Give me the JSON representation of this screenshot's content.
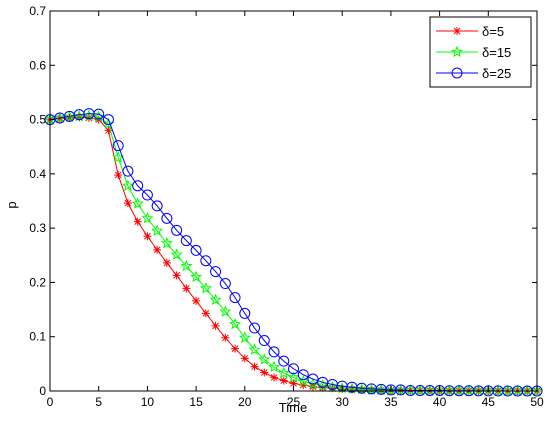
{
  "chart_data": {
    "type": "line",
    "xlabel": "Time",
    "ylabel": "p",
    "xlim": [
      0,
      50
    ],
    "ylim": [
      0,
      0.7
    ],
    "xticks": [
      0,
      5,
      10,
      15,
      20,
      25,
      30,
      35,
      40,
      45,
      50
    ],
    "yticks": [
      0,
      0.1,
      0.2,
      0.3,
      0.4,
      0.5,
      0.6,
      0.7
    ],
    "xtick_labels": [
      "0",
      "5",
      "10",
      "15",
      "20",
      "25",
      "30",
      "35",
      "40",
      "45",
      "50"
    ],
    "ytick_labels": [
      "0",
      "0.1",
      "0.2",
      "0.3",
      "0.4",
      "0.5",
      "0.6",
      "0.7"
    ],
    "grid": false,
    "legend_position": "top-right",
    "x": [
      0,
      1,
      2,
      3,
      4,
      5,
      6,
      7,
      8,
      9,
      10,
      11,
      12,
      13,
      14,
      15,
      16,
      17,
      18,
      19,
      20,
      21,
      22,
      23,
      24,
      25,
      26,
      27,
      28,
      29,
      30,
      31,
      32,
      33,
      34,
      35,
      36,
      37,
      38,
      39,
      40,
      41,
      42,
      43,
      44,
      45,
      46,
      47,
      48,
      49,
      50
    ],
    "series": [
      {
        "name": "δ=5",
        "color": "#ff0000",
        "marker": "asterisk",
        "values": [
          0.5,
          0.502,
          0.503,
          0.504,
          0.503,
          0.5,
          0.48,
          0.398,
          0.346,
          0.312,
          0.285,
          0.26,
          0.236,
          0.213,
          0.189,
          0.166,
          0.143,
          0.12,
          0.098,
          0.078,
          0.06,
          0.045,
          0.034,
          0.025,
          0.019,
          0.014,
          0.011,
          0.008,
          0.006,
          0.005,
          0.004,
          0.003,
          0.002,
          0.002,
          0.001,
          0.001,
          0.001,
          0.001,
          0.001,
          0.0005,
          0.0005,
          0.0003,
          0.0003,
          0.0002,
          0.0002,
          0.0001,
          0.0001,
          0.0001,
          0.0001,
          0.0001,
          0.0001
        ]
      },
      {
        "name": "δ=15",
        "color": "#00ff00",
        "marker": "star",
        "values": [
          0.5,
          0.503,
          0.505,
          0.506,
          0.507,
          0.505,
          0.492,
          0.43,
          0.378,
          0.345,
          0.318,
          0.295,
          0.272,
          0.251,
          0.23,
          0.21,
          0.189,
          0.168,
          0.146,
          0.123,
          0.098,
          0.076,
          0.058,
          0.044,
          0.033,
          0.025,
          0.018,
          0.013,
          0.01,
          0.007,
          0.005,
          0.004,
          0.003,
          0.002,
          0.002,
          0.001,
          0.001,
          0.001,
          0.001,
          0.0005,
          0.0005,
          0.0004,
          0.0003,
          0.0002,
          0.0002,
          0.0001,
          0.0001,
          0.0001,
          0.0001,
          0.0001,
          0.0001
        ]
      },
      {
        "name": "δ=25",
        "color": "#0000ff",
        "marker": "circle",
        "values": [
          0.5,
          0.503,
          0.506,
          0.509,
          0.511,
          0.51,
          0.5,
          0.452,
          0.405,
          0.378,
          0.361,
          0.341,
          0.318,
          0.296,
          0.277,
          0.259,
          0.24,
          0.22,
          0.198,
          0.172,
          0.143,
          0.116,
          0.093,
          0.072,
          0.055,
          0.041,
          0.03,
          0.022,
          0.016,
          0.012,
          0.009,
          0.007,
          0.005,
          0.004,
          0.003,
          0.002,
          0.002,
          0.001,
          0.001,
          0.001,
          0.001,
          0.0005,
          0.0005,
          0.0004,
          0.0003,
          0.0002,
          0.0002,
          0.0001,
          0.0001,
          0.0001,
          0.0001
        ]
      }
    ]
  }
}
